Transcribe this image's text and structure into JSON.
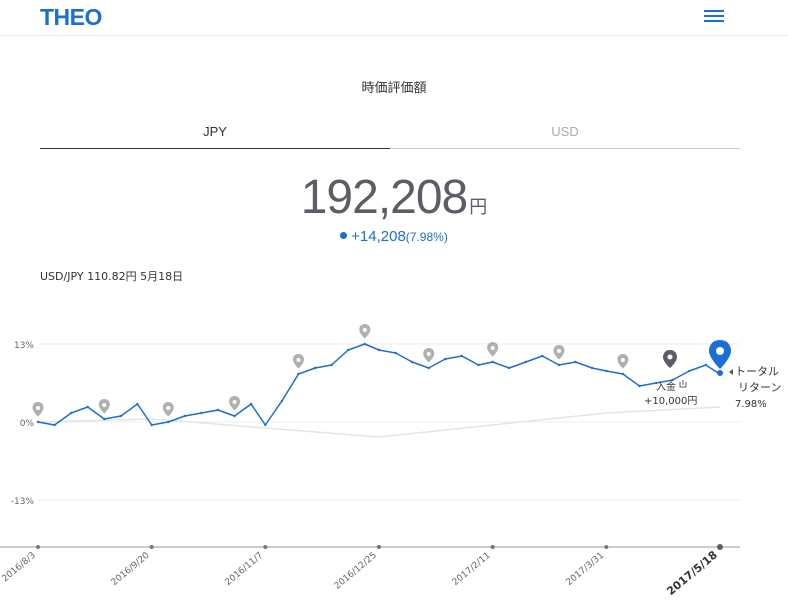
{
  "header": {
    "logo": "THEO",
    "menu_icon": "hamburger-icon"
  },
  "section_title": "時価評価額",
  "tabs": [
    {
      "label": "JPY",
      "active": true
    },
    {
      "label": "USD",
      "active": false
    }
  ],
  "valuation": {
    "amount": "192,208",
    "unit": "円",
    "change": "+14,208",
    "change_pct": "(7.98%)"
  },
  "fx": {
    "label": "USD/JPY",
    "rate": "110.82円",
    "date": "5月18日"
  },
  "colors": {
    "accent": "#1a6fd6",
    "benchmark": "#e4e4e4",
    "pin": "#b0b0b0",
    "deposit_pin": "#5b5e66"
  },
  "chart_data": {
    "type": "line",
    "y_ticks": [
      "13%",
      "0%",
      "-13%"
    ],
    "ylim": [
      -13,
      13
    ],
    "x_ticks": [
      "2016/8/3",
      "2016/9/20",
      "2016/11/7",
      "2016/12/25",
      "2017/2/11",
      "2017/3/31",
      "2017/5/18"
    ],
    "current_x_tick": "2017/5/18",
    "series": [
      {
        "name": "トータルリターン",
        "x": [
          "2016/8/3",
          "2016/8/10",
          "2016/8/17",
          "2016/8/24",
          "2016/8/31",
          "2016/9/7",
          "2016/9/14",
          "2016/9/20",
          "2016/9/27",
          "2016/10/4",
          "2016/10/11",
          "2016/10/18",
          "2016/10/25",
          "2016/11/1",
          "2016/11/7",
          "2016/11/14",
          "2016/11/21",
          "2016/11/28",
          "2016/12/5",
          "2016/12/12",
          "2016/12/19",
          "2016/12/25",
          "2017/1/1",
          "2017/1/8",
          "2017/1/15",
          "2017/1/22",
          "2017/1/29",
          "2017/2/5",
          "2017/2/11",
          "2017/2/18",
          "2017/2/25",
          "2017/3/4",
          "2017/3/11",
          "2017/3/18",
          "2017/3/25",
          "2017/3/31",
          "2017/4/7",
          "2017/4/14",
          "2017/4/21",
          "2017/4/28",
          "2017/5/5",
          "2017/5/12",
          "2017/5/18"
        ],
        "values": [
          0.0,
          -0.5,
          1.5,
          2.5,
          0.5,
          1.0,
          3.0,
          -0.5,
          0.0,
          1.0,
          1.5,
          2.0,
          1.0,
          3.0,
          -0.5,
          3.5,
          8.0,
          9.0,
          9.5,
          12.0,
          13.0,
          12.0,
          11.5,
          10.0,
          9.0,
          10.5,
          11.0,
          9.5,
          10.0,
          9.0,
          10.0,
          11.0,
          9.5,
          10.0,
          9.0,
          8.5,
          8.0,
          6.0,
          6.5,
          7.0,
          8.5,
          9.5,
          7.98
        ]
      },
      {
        "name": "benchmark",
        "x": [
          "2016/8/3",
          "2016/9/20",
          "2016/11/7",
          "2016/12/25",
          "2017/2/11",
          "2017/3/31",
          "2017/5/18"
        ],
        "values": [
          0.0,
          0.5,
          -1.0,
          -2.5,
          -0.5,
          1.5,
          2.5
        ]
      }
    ],
    "annotations": {
      "total_return": {
        "line1": "トータル",
        "line2": "リターン",
        "value": "7.98%"
      },
      "deposit": {
        "label": "入金",
        "amount": "+10,000円"
      }
    }
  }
}
